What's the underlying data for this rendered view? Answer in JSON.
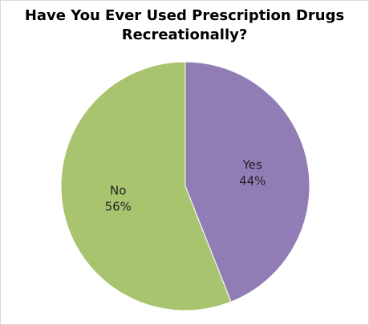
{
  "chart_data": {
    "type": "pie",
    "title": "Have You Ever Used Prescription Drugs Recreationally?",
    "categories": [
      "Yes",
      "No"
    ],
    "values": [
      44,
      56
    ],
    "value_labels": [
      "44%",
      "56%"
    ],
    "colors": [
      "#927cb6",
      "#a9c46f"
    ]
  }
}
